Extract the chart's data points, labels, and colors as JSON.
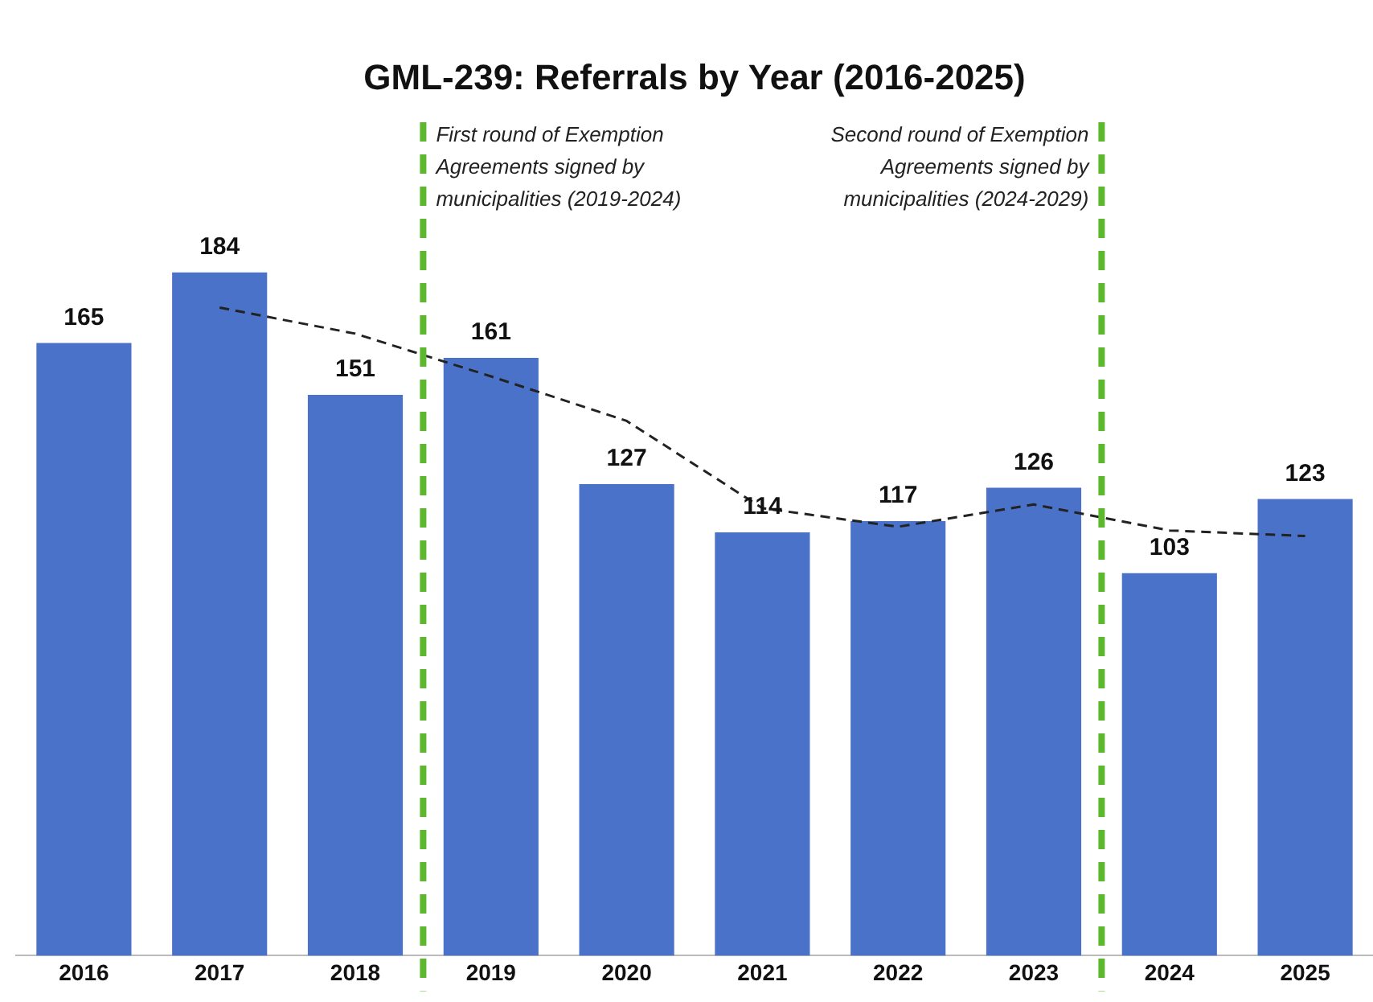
{
  "chart_data": {
    "type": "bar",
    "title": "GML-239: Referrals by Year (2016-2025)",
    "x": [
      2016,
      2017,
      2018,
      2019,
      2020,
      2021,
      2022,
      2023,
      2024,
      2025
    ],
    "xlim": [
      2015.5,
      2025.5
    ],
    "xticks": [
      2016,
      2017,
      2018,
      2019,
      2020,
      2021,
      2022,
      2023,
      2024,
      2025
    ],
    "tick_labels": "x",
    "grid": false,
    "legend": false,
    "series": [
      {
        "color": "#4a72c8",
        "values": [
          165,
          184,
          151,
          161,
          127,
          114,
          117,
          126,
          103,
          123
        ],
        "value_labels": [
          "165",
          "184",
          "151",
          "161",
          "127",
          "114",
          "117",
          "126",
          "103",
          "123"
        ]
      },
      {
        "type": "line",
        "color": "#222222",
        "line_style": "dashed",
        "marker": "none",
        "x": [
          2017,
          2018,
          2019,
          2020,
          2021,
          2022,
          2023,
          2024,
          2025
        ],
        "values": [
          174.5,
          167.5,
          156,
          144,
          120.5,
          115.5,
          121.5,
          114.5,
          113
        ]
      }
    ],
    "ref_lines": [
      {
        "axis": "x",
        "value": 2018.5,
        "color": "#5cb82e",
        "line_style": "dashed",
        "label": "First round of Exemption Agreements signed by municipalities (2019-2024)"
      },
      {
        "axis": "x",
        "value": 2023.5,
        "color": "#5cb82e",
        "line_style": "dashed",
        "label": "Second round of Exemption Agreements signed by municipalities (2024-2029)"
      }
    ]
  }
}
